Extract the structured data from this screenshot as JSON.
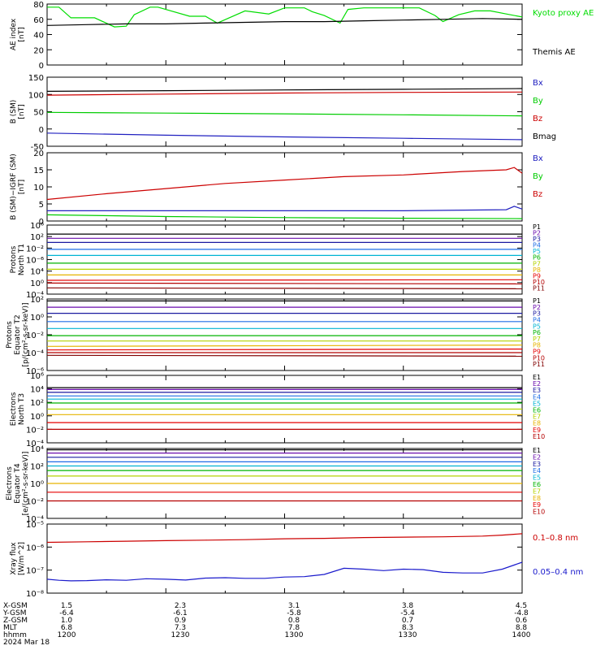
{
  "chart_data": [
    {
      "type": "line",
      "ylabel": [
        "AE index",
        "[nT]"
      ],
      "yscale": "linear",
      "ylim": [
        0,
        80
      ],
      "yticks": [
        "80",
        "60",
        "40",
        "20",
        "0"
      ],
      "series": [
        {
          "name": "Kyoto proxy AE",
          "color": "#00dd00",
          "x": [
            1200,
            1203,
            1206,
            1212,
            1217,
            1220,
            1222,
            1226,
            1228,
            1236,
            1240,
            1243,
            1246,
            1250,
            1256,
            1300,
            1305,
            1307,
            1310,
            1314,
            1316,
            1320,
            1326,
            1334,
            1338,
            1340,
            1344,
            1348,
            1352,
            1356,
            1400
          ],
          "y": [
            76,
            76,
            62,
            62,
            50,
            51,
            66,
            76,
            76,
            64,
            64,
            55,
            62,
            71,
            67,
            75,
            75,
            70,
            65,
            55,
            73,
            75,
            75,
            75,
            65,
            57,
            66,
            71,
            71,
            67,
            63
          ]
        },
        {
          "name": "Themis AE",
          "color": "#000000",
          "x": [
            1200,
            1210,
            1220,
            1230,
            1240,
            1250,
            1300,
            1310,
            1320,
            1330,
            1340,
            1350,
            1400
          ],
          "y": [
            52,
            53,
            54,
            54,
            55,
            56,
            57,
            57,
            58,
            59,
            60,
            61,
            60
          ]
        }
      ]
    },
    {
      "type": "line",
      "ylabel": [
        "B (SM)",
        "[nT]"
      ],
      "yscale": "linear",
      "ylim": [
        -50,
        150
      ],
      "yticks": [
        "150",
        "100",
        "50",
        "0",
        "-50"
      ],
      "series": [
        {
          "name": "Bx",
          "color": "#2020c0",
          "x": [
            1200,
            1230,
            1300,
            1330,
            1400
          ],
          "y": [
            -12,
            -18,
            -23,
            -27,
            -31
          ]
        },
        {
          "name": "By",
          "color": "#00cc00",
          "x": [
            1200,
            1230,
            1300,
            1330,
            1400
          ],
          "y": [
            48,
            46,
            44,
            41,
            38
          ]
        },
        {
          "name": "Bz",
          "color": "#cc0000",
          "x": [
            1200,
            1230,
            1300,
            1330,
            1400
          ],
          "y": [
            98,
            101,
            104,
            106,
            107
          ]
        },
        {
          "name": "Bmag",
          "color": "#000000",
          "x": [
            1200,
            1230,
            1300,
            1330,
            1400
          ],
          "y": [
            109,
            111,
            113,
            115,
            117
          ]
        }
      ]
    },
    {
      "type": "line",
      "ylabel": [
        "B (SM)−IGRF (SM)",
        "[nT]"
      ],
      "yscale": "linear",
      "ylim": [
        0,
        20
      ],
      "yticks": [
        "20",
        "15",
        "10",
        "5",
        "0"
      ],
      "series": [
        {
          "name": "Bx",
          "color": "#2020c0",
          "x": [
            1200,
            1230,
            1300,
            1330,
            1356,
            1358,
            1400
          ],
          "y": [
            3,
            3,
            3,
            3,
            3.3,
            4.3,
            3.5
          ]
        },
        {
          "name": "By",
          "color": "#00cc00",
          "x": [
            1200,
            1230,
            1300,
            1330,
            1400
          ],
          "y": [
            1.8,
            1.3,
            1.0,
            0.8,
            0.7
          ]
        },
        {
          "name": "Bz",
          "color": "#cc0000",
          "x": [
            1200,
            1215,
            1230,
            1245,
            1300,
            1315,
            1330,
            1345,
            1356,
            1358,
            1400
          ],
          "y": [
            6.3,
            8,
            9.5,
            11,
            12,
            13,
            13.5,
            14.5,
            15,
            15.7,
            14
          ]
        }
      ]
    },
    {
      "type": "line",
      "ylabel": [
        "Protons",
        "North T1"
      ],
      "yscale": "log",
      "ylim": [
        1e-06,
        10000
      ],
      "yticks": [
        "10⁶",
        "10²",
        "10⁻²",
        "10⁻⁶",
        "10⁴",
        "10⁰",
        "10⁻⁴"
      ],
      "series": [
        {
          "name": "P1",
          "color": "#000000",
          "values": [
            500,
            500
          ]
        },
        {
          "name": "P2",
          "color": "#6a0dad",
          "values": [
            120,
            120
          ]
        },
        {
          "name": "P3",
          "color": "#1a1aa0",
          "values": [
            30,
            30
          ]
        },
        {
          "name": "P4",
          "color": "#1e6ee6",
          "values": [
            3,
            3
          ]
        },
        {
          "name": "P5",
          "color": "#00b4d2",
          "values": [
            0.4,
            0.4
          ]
        },
        {
          "name": "P6",
          "color": "#00b400",
          "values": [
            0.03,
            0.03
          ]
        },
        {
          "name": "P7",
          "color": "#b4d200",
          "values": [
            0.004,
            0.004
          ]
        },
        {
          "name": "P8",
          "color": "#e6b400",
          "values": [
            0.0006,
            0.0006
          ]
        },
        {
          "name": "P9",
          "color": "#e60000",
          "values": [
            0.0001,
            0.00012
          ]
        },
        {
          "name": "P10",
          "color": "#b40000",
          "values": [
            4e-05,
            3e-05
          ]
        },
        {
          "name": "P11",
          "color": "#800000",
          "values": [
            8e-06,
            6e-06
          ]
        }
      ]
    },
    {
      "type": "line",
      "ylabel": [
        "Protons",
        "Equator T2",
        "[p/(cm²-s-sr-keV)]"
      ],
      "yscale": "log",
      "ylim": [
        1e-06,
        100
      ],
      "yticks": [
        "10²",
        "10⁰",
        "10⁻²",
        "10⁻⁴",
        "10⁻⁶"
      ],
      "series": [
        {
          "name": "P1",
          "color": "#000000",
          "values": [
            60,
            60
          ]
        },
        {
          "name": "P2",
          "color": "#6a0dad",
          "values": [
            12,
            12
          ]
        },
        {
          "name": "P3",
          "color": "#1a1aa0",
          "values": [
            2.5,
            2.5
          ]
        },
        {
          "name": "P4",
          "color": "#1e6ee6",
          "values": [
            0.3,
            0.3
          ]
        },
        {
          "name": "P5",
          "color": "#00b4d2",
          "values": [
            0.05,
            0.05
          ]
        },
        {
          "name": "P6",
          "color": "#00b400",
          "values": [
            0.008,
            0.008
          ]
        },
        {
          "name": "P7",
          "color": "#b4d200",
          "values": [
            0.002,
            0.002
          ]
        },
        {
          "name": "P8",
          "color": "#e6b400",
          "values": [
            0.0005,
            0.0007
          ]
        },
        {
          "name": "P9",
          "color": "#e60000",
          "values": [
            0.0002,
            0.00025
          ]
        },
        {
          "name": "P10",
          "color": "#b40000",
          "values": [
            0.0001,
            0.0001
          ]
        },
        {
          "name": "P11",
          "color": "#800000",
          "values": [
            5e-05,
            4e-05
          ]
        }
      ]
    },
    {
      "type": "line",
      "ylabel": [
        "Electrons",
        "North T3"
      ],
      "yscale": "log",
      "ylim": [
        0.0001,
        1000000
      ],
      "yticks": [
        "10⁶",
        "10⁴",
        "10²",
        "10⁰",
        "10⁻²",
        "10⁻⁴"
      ],
      "series": [
        {
          "name": "E1",
          "color": "#000000",
          "values": [
            15000,
            15000
          ]
        },
        {
          "name": "E2",
          "color": "#6a0dad",
          "values": [
            8000,
            8000
          ]
        },
        {
          "name": "E3",
          "color": "#1a1aa0",
          "values": [
            3000,
            3000
          ]
        },
        {
          "name": "E4",
          "color": "#1e6ee6",
          "values": [
            900,
            900
          ]
        },
        {
          "name": "E5",
          "color": "#00b4d2",
          "values": [
            300,
            300
          ]
        },
        {
          "name": "E6",
          "color": "#00b400",
          "values": [
            80,
            80
          ]
        },
        {
          "name": "E7",
          "color": "#b4d200",
          "values": [
            10,
            10
          ]
        },
        {
          "name": "E8",
          "color": "#e6b400",
          "values": [
            1.5,
            1.5
          ]
        },
        {
          "name": "E9",
          "color": "#e60000",
          "values": [
            0.1,
            0.1
          ]
        },
        {
          "name": "E10",
          "color": "#b40000",
          "values": [
            0.01,
            0.01
          ]
        }
      ]
    },
    {
      "type": "line",
      "ylabel": [
        "Electrons",
        "Equator T4",
        "[e/(cm²-s-sr-keV)]"
      ],
      "yscale": "log",
      "ylim": [
        0.0001,
        10000
      ],
      "yticks": [
        "10⁴",
        "10²",
        "10⁰",
        "10⁻²",
        "10⁻⁴"
      ],
      "series": [
        {
          "name": "E1",
          "color": "#000000",
          "values": [
            7000,
            7000
          ]
        },
        {
          "name": "E2",
          "color": "#6a0dad",
          "values": [
            3000,
            3000
          ]
        },
        {
          "name": "E3",
          "color": "#1a1aa0",
          "values": [
            1000,
            1000
          ]
        },
        {
          "name": "E4",
          "color": "#1e6ee6",
          "values": [
            300,
            300
          ]
        },
        {
          "name": "E5",
          "color": "#00b4d2",
          "values": [
            100,
            100
          ]
        },
        {
          "name": "E6",
          "color": "#00b400",
          "values": [
            30,
            30
          ]
        },
        {
          "name": "E7",
          "color": "#b4d200",
          "values": [
            7,
            7
          ]
        },
        {
          "name": "E8",
          "color": "#e6b400",
          "values": [
            1,
            1
          ]
        },
        {
          "name": "E9",
          "color": "#e60000",
          "values": [
            0.1,
            0.1
          ]
        },
        {
          "name": "E10",
          "color": "#b40000",
          "values": [
            0.01,
            0.01
          ]
        }
      ]
    },
    {
      "type": "line",
      "ylabel": [
        "Xray flux",
        "[W/m^2]"
      ],
      "yscale": "log",
      "ylim": [
        1e-08,
        1e-05
      ],
      "yticks": [
        "10⁻⁵",
        "10⁻⁶",
        "10⁻⁷",
        "10⁻⁸"
      ],
      "series": [
        {
          "name": "0.1–0.8 nm",
          "color": "#cc0000",
          "x": [
            1200,
            1210,
            1220,
            1230,
            1240,
            1250,
            1300,
            1310,
            1320,
            1330,
            1340,
            1350,
            1355,
            1400
          ],
          "y": [
            1.6e-06,
            1.7e-06,
            1.8e-06,
            1.9e-06,
            2e-06,
            2.1e-06,
            2.3e-06,
            2.4e-06,
            2.6e-06,
            2.7e-06,
            2.8e-06,
            3e-06,
            3.3e-06,
            3.8e-06
          ]
        },
        {
          "name": "0.05–0.4 nm",
          "color": "#1a1acc",
          "x": [
            1200,
            1203,
            1206,
            1210,
            1215,
            1220,
            1225,
            1230,
            1235,
            1240,
            1245,
            1250,
            1255,
            1300,
            1305,
            1310,
            1315,
            1320,
            1325,
            1330,
            1335,
            1340,
            1345,
            1350,
            1355,
            1400
          ],
          "y": [
            4e-08,
            3.6e-08,
            3.4e-08,
            3.5e-08,
            3.8e-08,
            3.6e-08,
            4.2e-08,
            4e-08,
            3.7e-08,
            4.5e-08,
            4.7e-08,
            4.4e-08,
            4.4e-08,
            5e-08,
            5.2e-08,
            6.5e-08,
            1.2e-07,
            1.1e-07,
            9.5e-08,
            1.1e-07,
            1.05e-07,
            8e-08,
            7.5e-08,
            7.5e-08,
            1.1e-07,
            2.2e-07
          ]
        }
      ]
    }
  ],
  "ephemeris": {
    "row_labels": [
      "X-GSM",
      "Y-GSM",
      "Z-GSM",
      "MLT",
      "hhmm"
    ],
    "columns": [
      {
        "values": [
          "1.5",
          "-6.4",
          "1.0",
          "6.8",
          "1200"
        ]
      },
      {
        "values": [
          "2.3",
          "-6.1",
          "0.9",
          "7.3",
          "1230"
        ]
      },
      {
        "values": [
          "3.1",
          "-5.8",
          "0.8",
          "7.8",
          "1300"
        ]
      },
      {
        "values": [
          "3.8",
          "-5.4",
          "0.7",
          "8.3",
          "1330"
        ]
      },
      {
        "values": [
          "4.5",
          "-4.8",
          "0.6",
          "8.8",
          "1400"
        ]
      }
    ],
    "date": "2024 Mar 18"
  }
}
